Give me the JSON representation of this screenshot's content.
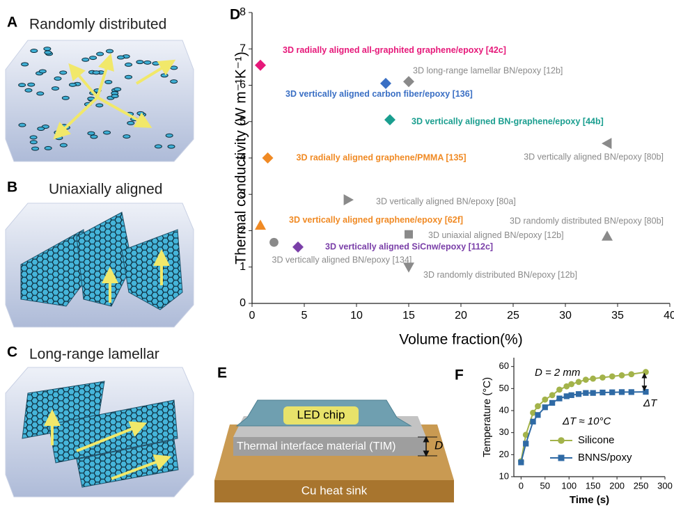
{
  "chart_data": [
    {
      "type": "scatter",
      "panel": "D",
      "x_label": "Volume fraction(%)",
      "y_label": "Thermal conductivity (W m⁻¹K⁻¹)",
      "xlim": [
        0,
        40
      ],
      "xticks": [
        0,
        5,
        10,
        15,
        20,
        25,
        30,
        35,
        40
      ],
      "ylim": [
        0,
        8
      ],
      "yticks": [
        0,
        1,
        2,
        3,
        4,
        5,
        6,
        7,
        8
      ],
      "series": [
        {
          "name": "3D radially aligned all-graphited graphene/epoxy [42c]",
          "color": "#e6197a",
          "marker": "diamond",
          "x": [
            0.8
          ],
          "values": [
            6.55
          ]
        },
        {
          "name": "3D long-range lamellar BN/epoxy [12b]",
          "color": "#8a8a8a",
          "marker": "diamond",
          "x": [
            15
          ],
          "values": [
            6.1
          ]
        },
        {
          "name": "3D vertically aligned carbon fiber/epoxy [136]",
          "color": "#3a6fc4",
          "marker": "diamond",
          "x": [
            12.8
          ],
          "values": [
            6.05
          ]
        },
        {
          "name": "3D vertically aligned BN-graphene/epoxy [44b]",
          "color": "#1a9e8f",
          "marker": "diamond",
          "x": [
            13.2
          ],
          "values": [
            5.05
          ]
        },
        {
          "name": "3D radially aligned graphene/PMMA [135]",
          "color": "#f08a24",
          "marker": "diamond",
          "x": [
            1.5
          ],
          "values": [
            4.0
          ]
        },
        {
          "name": "3D vertically aligned BN/epoxy [80b]",
          "color": "#8a8a8a",
          "marker": "triangle-left",
          "x": [
            34
          ],
          "values": [
            4.4
          ]
        },
        {
          "name": "3D vertically aligned BN/epoxy [80a]",
          "color": "#8a8a8a",
          "marker": "triangle-right",
          "x": [
            9.2
          ],
          "values": [
            2.85
          ]
        },
        {
          "name": "3D vertically aligned graphene/epoxy [62f]",
          "color": "#f08a24",
          "marker": "triangle-up",
          "x": [
            0.8
          ],
          "values": [
            2.15
          ]
        },
        {
          "name": "3D randomly distributed BN/epoxy [80b]",
          "color": "#8a8a8a",
          "marker": "triangle-up",
          "x": [
            34
          ],
          "values": [
            1.85
          ]
        },
        {
          "name": "3D uniaxial aligned BN/epoxy [12b]",
          "color": "#8a8a8a",
          "marker": "square",
          "x": [
            15
          ],
          "values": [
            1.9
          ]
        },
        {
          "name": "3D vertically aligned BN/epoxy [134]",
          "color": "#8a8a8a",
          "marker": "circle",
          "x": [
            2.1
          ],
          "values": [
            1.68
          ]
        },
        {
          "name": "3D vertically aligned SiCnw/epoxy [112c]",
          "color": "#7a3fa8",
          "marker": "diamond",
          "x": [
            4.4
          ],
          "values": [
            1.55
          ]
        },
        {
          "name": "3D randomly distributed BN/epoxy [12b]",
          "color": "#8a8a8a",
          "marker": "triangle-down",
          "x": [
            15
          ],
          "values": [
            1.0
          ]
        }
      ]
    },
    {
      "type": "line",
      "panel": "F",
      "x_label": "Time (s)",
      "y_label": "Temperature (°C)",
      "annotations": [
        "D = 2 mm",
        "ΔT",
        "ΔT ≈ 10°C"
      ],
      "xlim": [
        -15,
        300
      ],
      "xticks": [
        0,
        50,
        100,
        150,
        200,
        250,
        300
      ],
      "ylim": [
        10,
        64
      ],
      "yticks": [
        10,
        20,
        30,
        40,
        50,
        60
      ],
      "x": [
        0,
        10,
        25,
        35,
        50,
        65,
        80,
        95,
        105,
        120,
        135,
        150,
        170,
        190,
        210,
        230,
        260
      ],
      "series": [
        {
          "name": "Silicone",
          "color": "#a3b34a",
          "marker": "circle",
          "values": [
            17,
            29,
            39,
            42,
            45,
            47,
            49.5,
            51,
            52,
            53,
            54,
            54.5,
            55,
            55.5,
            56,
            56.5,
            57.5
          ]
        },
        {
          "name": "BNNS/poxy",
          "color": "#2f6aa5",
          "marker": "square",
          "values": [
            16.5,
            25,
            35,
            38,
            41.5,
            43.5,
            45.5,
            46.5,
            47,
            47.5,
            48,
            48,
            48.2,
            48.3,
            48.4,
            48.4,
            48.5
          ]
        }
      ]
    }
  ],
  "illustrations": [
    {
      "label": "A",
      "title": "Randomly distributed"
    },
    {
      "label": "B",
      "title": "Uniaxially aligned"
    },
    {
      "label": "C",
      "title": "Long-range lamellar"
    }
  ],
  "diagram_E": {
    "label": "E",
    "chip": "LED chip",
    "tim": "Thermal interface material (TIM)",
    "sink": "Cu heat sink",
    "thickness": "D"
  }
}
